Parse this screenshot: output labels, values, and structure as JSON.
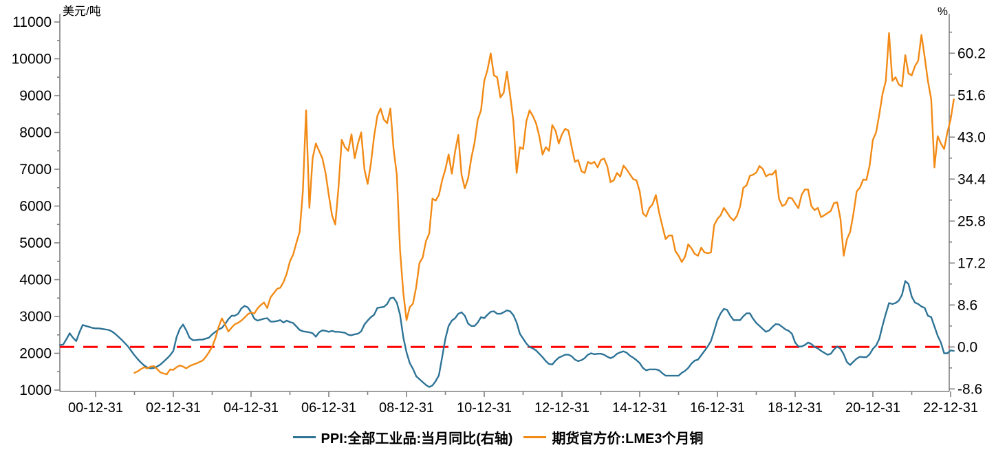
{
  "page": {
    "background": "#ffffff"
  },
  "chart_data": {
    "type": "line",
    "title": "",
    "legend_position": "bottom",
    "colors": {
      "ppi_line": "#2D7396",
      "lme_line": "#F28A15",
      "reference": "#FF0000",
      "axis": "#808080",
      "text": "#000000"
    },
    "left_axis": {
      "unit": "美元/吨",
      "min": 1000,
      "max": 11000,
      "ticks": [
        {
          "v": 1000,
          "label": "1000"
        },
        {
          "v": 2000,
          "label": "2000"
        },
        {
          "v": 3000,
          "label": "3000"
        },
        {
          "v": 4000,
          "label": "4000"
        },
        {
          "v": 5000,
          "label": "5000"
        },
        {
          "v": 6000,
          "label": "6000"
        },
        {
          "v": 7000,
          "label": "7000"
        },
        {
          "v": 8000,
          "label": "8000"
        },
        {
          "v": 9000,
          "label": "9000"
        },
        {
          "v": 10000,
          "label": "10000"
        },
        {
          "v": 11000,
          "label": "11000"
        }
      ],
      "minor_ticks": [
        1500,
        2500,
        3500,
        4500,
        5500,
        6500,
        7500,
        8500,
        9500,
        10500
      ]
    },
    "right_axis": {
      "unit": "%",
      "min": -8.9,
      "max": 66.5,
      "ticks": [
        {
          "v": -8.6,
          "label": "-8.6"
        },
        {
          "v": 0.0,
          "label": "0.0"
        },
        {
          "v": 8.6,
          "label": "8.6"
        },
        {
          "v": 17.2,
          "label": "17.2"
        },
        {
          "v": 25.8,
          "label": "25.8"
        },
        {
          "v": 34.4,
          "label": "34.4"
        },
        {
          "v": 43.0,
          "label": "43.0"
        },
        {
          "v": 51.6,
          "label": "51.6"
        },
        {
          "v": 60.2,
          "label": "60.2"
        }
      ],
      "minor_ticks": [
        -4.3,
        4.3,
        12.9,
        21.5,
        30.1,
        38.7,
        47.3,
        55.9,
        64.5
      ]
    },
    "x_axis": {
      "ticks": [
        {
          "t": 2001,
          "label": "00-12-31"
        },
        {
          "t": 2003,
          "label": "02-12-31"
        },
        {
          "t": 2005,
          "label": "04-12-31"
        },
        {
          "t": 2007,
          "label": "06-12-31"
        },
        {
          "t": 2009,
          "label": "08-12-31"
        },
        {
          "t": 2011,
          "label": "10-12-31"
        },
        {
          "t": 2013,
          "label": "12-12-31"
        },
        {
          "t": 2015,
          "label": "14-12-31"
        },
        {
          "t": 2017,
          "label": "16-12-31"
        },
        {
          "t": 2019,
          "label": "18-12-31"
        },
        {
          "t": 2021,
          "label": "20-12-31"
        },
        {
          "t": 2023,
          "label": "22-12-31"
        }
      ],
      "minor_ticks": [
        2002,
        2004,
        2006,
        2008,
        2010,
        2012,
        2014,
        2016,
        2018,
        2020,
        2022
      ]
    },
    "reference_line": {
      "axis": "right",
      "value": 0.0,
      "color": "#FF0000",
      "style": "dashed"
    },
    "series": [
      {
        "name": "PPI:全部工业品:当月同比(右轴)",
        "axis": "right",
        "color": "#2D7396",
        "frequency": "monthly",
        "start_year": 2000,
        "start_month": 1,
        "values": [
          0.4,
          0.5,
          1.6,
          2.8,
          1.9,
          1.2,
          3.0,
          4.5,
          4.3,
          4.1,
          3.9,
          3.8,
          3.8,
          3.7,
          3.6,
          3.5,
          3.2,
          2.7,
          2.1,
          1.5,
          0.8,
          0.1,
          -0.8,
          -1.7,
          -2.5,
          -3.2,
          -3.8,
          -4.2,
          -4.4,
          -4.3,
          -4.0,
          -3.6,
          -3.0,
          -2.4,
          -1.7,
          -0.8,
          2.0,
          3.7,
          4.6,
          3.4,
          1.9,
          1.4,
          1.4,
          1.5,
          1.5,
          1.7,
          1.9,
          2.6,
          3.1,
          3.6,
          3.9,
          4.7,
          5.7,
          6.4,
          6.4,
          6.8,
          7.9,
          8.4,
          8.1,
          7.1,
          5.8,
          5.4,
          5.6,
          5.8,
          5.9,
          5.2,
          5.2,
          5.3,
          5.5,
          5.0,
          5.4,
          5.1,
          4.9,
          4.2,
          3.5,
          3.2,
          3.1,
          3.0,
          2.8,
          2.1,
          3.0,
          3.4,
          3.3,
          3.1,
          3.3,
          3.1,
          3.1,
          3.0,
          2.9,
          2.5,
          2.4,
          2.6,
          2.7,
          3.2,
          4.6,
          5.4,
          6.1,
          6.6,
          8.0,
          8.1,
          8.2,
          8.8,
          10.0,
          10.1,
          9.1,
          6.6,
          2.0,
          -1.1,
          -3.3,
          -4.5,
          -6.0,
          -6.6,
          -7.2,
          -7.8,
          -8.2,
          -7.9,
          -7.0,
          -5.8,
          -2.1,
          1.7,
          4.3,
          5.4,
          5.9,
          6.8,
          7.1,
          6.4,
          4.8,
          4.3,
          4.3,
          5.0,
          6.1,
          5.9,
          6.6,
          7.2,
          7.3,
          6.8,
          6.8,
          7.1,
          7.5,
          7.3,
          6.5,
          5.0,
          2.7,
          1.7,
          0.7,
          0.0,
          -0.3,
          -0.7,
          -1.4,
          -2.1,
          -2.9,
          -3.5,
          -3.6,
          -2.8,
          -2.2,
          -1.9,
          -1.6,
          -1.6,
          -1.9,
          -2.6,
          -2.9,
          -2.7,
          -2.3,
          -1.6,
          -1.3,
          -1.5,
          -1.4,
          -1.4,
          -1.6,
          -2.0,
          -2.3,
          -2.0,
          -1.4,
          -1.1,
          -0.9,
          -1.2,
          -1.8,
          -2.2,
          -2.7,
          -3.3,
          -4.3,
          -4.8,
          -4.6,
          -4.6,
          -4.6,
          -4.8,
          -5.4,
          -5.9,
          -5.9,
          -5.9,
          -5.9,
          -5.9,
          -5.3,
          -4.9,
          -4.3,
          -3.4,
          -2.8,
          -2.6,
          -1.7,
          -0.8,
          0.1,
          1.2,
          3.3,
          5.5,
          6.9,
          7.8,
          7.6,
          6.4,
          5.5,
          5.5,
          5.5,
          6.3,
          6.9,
          6.9,
          5.8,
          4.9,
          4.3,
          3.7,
          3.1,
          3.4,
          4.1,
          4.7,
          4.6,
          4.1,
          3.6,
          3.3,
          2.7,
          0.9,
          0.1,
          0.1,
          0.4,
          0.9,
          0.6,
          0.0,
          -0.3,
          -0.8,
          -1.2,
          -1.6,
          -1.4,
          -0.5,
          0.1,
          -0.4,
          -1.5,
          -3.1,
          -3.7,
          -3.0,
          -2.4,
          -2.0,
          -2.1,
          -2.1,
          -1.5,
          -0.4,
          0.3,
          1.7,
          4.4,
          6.8,
          9.0,
          8.8,
          9.0,
          9.5,
          10.7,
          13.5,
          12.9,
          10.3,
          9.1,
          8.8,
          8.3,
          8.0,
          6.4,
          6.1,
          4.2,
          2.3,
          0.9,
          -1.3,
          -1.3,
          -0.7,
          -0.8
        ]
      },
      {
        "name": "期货官方价:LME3个月铜",
        "axis": "left",
        "color": "#F28A15",
        "frequency": "monthly",
        "start_year": 2001,
        "start_month": 12,
        "values": [
          1470,
          1510,
          1570,
          1620,
          1590,
          1640,
          1650,
          1570,
          1480,
          1450,
          1430,
          1560,
          1550,
          1620,
          1670,
          1640,
          1590,
          1650,
          1690,
          1720,
          1760,
          1800,
          1900,
          2030,
          2180,
          2410,
          2720,
          2950,
          2780,
          2590,
          2700,
          2790,
          2830,
          2890,
          2970,
          3060,
          3110,
          3080,
          3220,
          3310,
          3380,
          3230,
          3520,
          3630,
          3750,
          3780,
          3930,
          4160,
          4500,
          4680,
          5000,
          5300,
          6400,
          8600,
          5950,
          7300,
          7700,
          7500,
          7300,
          6900,
          6300,
          5750,
          5500,
          6500,
          7800,
          7600,
          7500,
          7950,
          7300,
          7700,
          8000,
          7000,
          6600,
          7150,
          7900,
          8450,
          8650,
          8350,
          8250,
          8650,
          7550,
          6850,
          4800,
          3650,
          2900,
          3250,
          3350,
          3800,
          4450,
          4600,
          5050,
          5250,
          6200,
          6150,
          6300,
          6700,
          7000,
          7400,
          6880,
          7480,
          7930,
          6850,
          6480,
          6750,
          7300,
          7720,
          8350,
          8600,
          9400,
          9700,
          10150,
          9550,
          9500,
          8950,
          9080,
          9650,
          9000,
          8300,
          6900,
          7600,
          7550,
          8300,
          8600,
          8450,
          8250,
          7900,
          7400,
          7600,
          7500,
          8200,
          8050,
          7700,
          7950,
          8100,
          8050,
          7600,
          7200,
          7250,
          6950,
          6900,
          7200,
          7150,
          7200,
          7050,
          7250,
          7290,
          7080,
          6650,
          6700,
          6900,
          6800,
          7100,
          6990,
          6860,
          6730,
          6700,
          6400,
          5800,
          5720,
          5950,
          6050,
          6300,
          5820,
          5450,
          5100,
          5200,
          5200,
          4780,
          4650,
          4480,
          4620,
          4960,
          4850,
          4700,
          4650,
          4870,
          4740,
          4720,
          4740,
          5480,
          5650,
          5750,
          5950,
          5820,
          5690,
          5610,
          5730,
          5990,
          6500,
          6560,
          6820,
          6850,
          6910,
          7090,
          7010,
          6810,
          6860,
          6860,
          6970,
          6200,
          6000,
          6050,
          6230,
          6210,
          6070,
          5940,
          6300,
          6450,
          6450,
          6000,
          5890,
          5950,
          5700,
          5750,
          5810,
          5870,
          6080,
          6100,
          5650,
          4650,
          5100,
          5300,
          5800,
          6400,
          6500,
          6720,
          6710,
          7100,
          7800,
          8000,
          8500,
          9050,
          9400,
          10700,
          9400,
          9500,
          9300,
          9250,
          10100,
          9600,
          9550,
          9800,
          9950,
          10650,
          10050,
          9400,
          8900,
          7050,
          7900,
          7700,
          7550,
          8000,
          8350,
          8900
        ]
      }
    ]
  }
}
